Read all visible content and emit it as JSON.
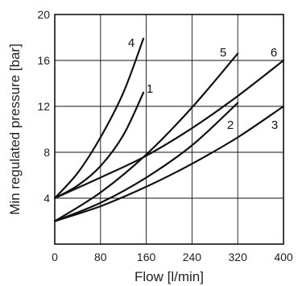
{
  "chart_data": {
    "type": "line",
    "xlabel": "Flow [l/min]",
    "ylabel": "Min regulated pressure [bar]",
    "xlim": [
      0,
      400
    ],
    "ylim": [
      0,
      20
    ],
    "xticks": [
      "0",
      "80",
      "160",
      "240",
      "320",
      "400"
    ],
    "yticks": [
      "0",
      "4",
      "8",
      "12",
      "16",
      "20"
    ],
    "grid": true,
    "series": [
      {
        "name": "1",
        "x": [
          0,
          40,
          80,
          120,
          155
        ],
        "y": [
          4,
          5.1,
          6.8,
          9.5,
          13.2
        ]
      },
      {
        "name": "2",
        "x": [
          0,
          80,
          160,
          240,
          320
        ],
        "y": [
          2,
          3.6,
          5.8,
          8.6,
          12.3
        ]
      },
      {
        "name": "3",
        "x": [
          0,
          80,
          160,
          240,
          320,
          400
        ],
        "y": [
          2,
          3.3,
          5.0,
          7.0,
          9.3,
          12.0
        ]
      },
      {
        "name": "4",
        "x": [
          0,
          40,
          80,
          120,
          155
        ],
        "y": [
          4,
          6.2,
          9.3,
          13.2,
          17.9
        ]
      },
      {
        "name": "5",
        "x": [
          0,
          80,
          160,
          240,
          320
        ],
        "y": [
          2,
          4.5,
          7.8,
          11.9,
          16.6
        ]
      },
      {
        "name": "6",
        "x": [
          0,
          80,
          160,
          240,
          320,
          400
        ],
        "y": [
          4,
          5.8,
          7.7,
          10.1,
          12.9,
          16.0
        ]
      }
    ]
  }
}
